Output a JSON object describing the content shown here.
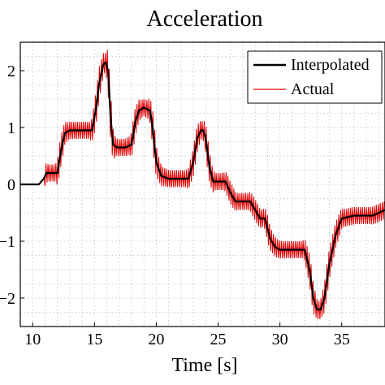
{
  "chart_data": {
    "type": "line",
    "title": "Acceleration",
    "xlabel": "Time [s]",
    "ylabel": "",
    "xlim": [
      9,
      38.5
    ],
    "ylim": [
      -2.5,
      2.5
    ],
    "xticks": [
      10,
      15,
      20,
      25,
      30,
      35
    ],
    "yticks": [
      -2,
      -1,
      0,
      1,
      2
    ],
    "xtick_labels": [
      "10",
      "15",
      "20",
      "25",
      "30",
      "35"
    ],
    "ytick_labels": [
      "−2",
      "−1",
      "0",
      "1",
      "2"
    ],
    "grid": true,
    "legend_position": "top-right",
    "legend": [
      {
        "label": "Interpolated",
        "color": "#000000"
      },
      {
        "label": "Actual",
        "color": "#e00000"
      }
    ],
    "series": [
      {
        "name": "Interpolated",
        "color": "#000000",
        "x": [
          9,
          10.5,
          10.9,
          11.1,
          11.5,
          12.0,
          12.3,
          12.6,
          13.0,
          14.0,
          14.8,
          15.1,
          15.4,
          15.7,
          15.9,
          16.1,
          16.3,
          16.5,
          16.8,
          17.1,
          17.5,
          18.0,
          18.3,
          18.6,
          19.0,
          19.5,
          19.7,
          20.0,
          20.4,
          21.0,
          22.0,
          22.6,
          23.0,
          23.3,
          23.6,
          23.8,
          24.0,
          24.3,
          24.6,
          25.0,
          25.6,
          26.0,
          26.4,
          27.0,
          27.6,
          28.0,
          28.4,
          28.8,
          29.2,
          29.6,
          30.0,
          30.6,
          31.0,
          31.6,
          32.0,
          32.4,
          32.7,
          33.0,
          33.3,
          33.6,
          34.0,
          34.5,
          35.0,
          36.0,
          37.5,
          38.0,
          38.5
        ],
        "y": [
          0,
          0,
          0.1,
          0.2,
          0.2,
          0.2,
          0.6,
          0.9,
          0.95,
          0.95,
          0.95,
          1.3,
          1.8,
          2.1,
          2.15,
          2.0,
          1.2,
          0.7,
          0.65,
          0.65,
          0.65,
          0.7,
          1.1,
          1.3,
          1.35,
          1.3,
          1.0,
          0.4,
          0.15,
          0.1,
          0.1,
          0.1,
          0.4,
          0.8,
          0.95,
          0.95,
          0.8,
          0.3,
          0.05,
          0.05,
          0.05,
          -0.15,
          -0.3,
          -0.3,
          -0.3,
          -0.45,
          -0.6,
          -0.6,
          -0.95,
          -1.1,
          -1.15,
          -1.15,
          -1.15,
          -1.15,
          -1.15,
          -1.5,
          -2.0,
          -2.2,
          -2.2,
          -2.0,
          -1.4,
          -0.9,
          -0.6,
          -0.55,
          -0.55,
          -0.5,
          -0.45
        ]
      },
      {
        "name": "Actual",
        "color": "#e00000",
        "x": [
          9,
          10.5,
          10.9,
          11.1,
          11.5,
          12.0,
          12.3,
          12.6,
          13.0,
          14.0,
          14.8,
          15.1,
          15.4,
          15.7,
          15.9,
          16.1,
          16.3,
          16.5,
          16.8,
          17.1,
          17.5,
          18.0,
          18.3,
          18.6,
          19.0,
          19.5,
          19.7,
          20.0,
          20.4,
          21.0,
          22.0,
          22.6,
          23.0,
          23.3,
          23.6,
          23.8,
          24.0,
          24.3,
          24.6,
          25.0,
          25.6,
          26.0,
          26.4,
          27.0,
          27.6,
          28.0,
          28.4,
          28.8,
          29.2,
          29.6,
          30.0,
          30.6,
          31.0,
          31.6,
          32.0,
          32.4,
          32.7,
          33.0,
          33.3,
          33.6,
          34.0,
          34.5,
          35.0,
          36.0,
          37.5,
          38.0,
          38.5
        ],
        "y": [
          0,
          0,
          0.1,
          0.2,
          0.2,
          0.2,
          0.6,
          0.9,
          0.95,
          0.95,
          0.95,
          1.3,
          1.8,
          2.1,
          2.15,
          2.0,
          1.2,
          0.7,
          0.65,
          0.65,
          0.65,
          0.7,
          1.1,
          1.3,
          1.35,
          1.3,
          1.0,
          0.4,
          0.15,
          0.1,
          0.1,
          0.1,
          0.4,
          0.8,
          0.95,
          0.95,
          0.8,
          0.3,
          0.05,
          0.05,
          0.05,
          -0.15,
          -0.3,
          -0.3,
          -0.3,
          -0.45,
          -0.6,
          -0.6,
          -0.95,
          -1.1,
          -1.15,
          -1.15,
          -1.15,
          -1.15,
          -1.15,
          -1.5,
          -2.0,
          -2.2,
          -2.2,
          -2.0,
          -1.4,
          -0.9,
          -0.6,
          -0.55,
          -0.55,
          -0.5,
          -0.45
        ],
        "oscillation_amplitude": 0.25
      }
    ]
  }
}
